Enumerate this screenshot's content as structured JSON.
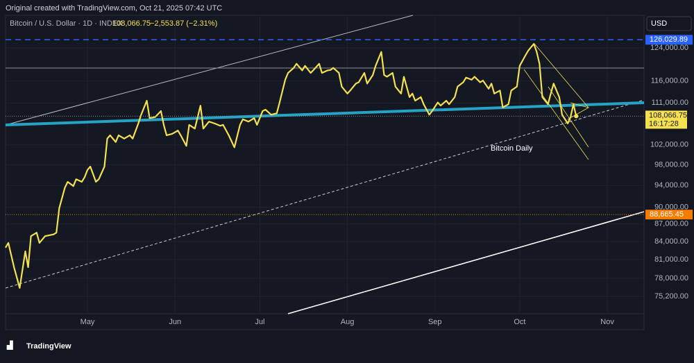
{
  "header": {
    "attribution": "Original created with TradingView.com, Oct 21, 2025 07:42 UTC",
    "brand": "TradingView"
  },
  "chart_data": {
    "type": "line",
    "legend": {
      "symbol": "Bitcoin / U.S. Dollar · 1D · INDEX",
      "price": "108,066.75",
      "change": "−2,553.87 (−2.31%)"
    },
    "currency": "USD",
    "annotation": "Bitcoin Daily",
    "log_scale": true,
    "grid": true,
    "xlim": [
      0,
      226
    ],
    "ylim": [
      72630,
      132400
    ],
    "xticks": [
      {
        "value": 29,
        "label": "May"
      },
      {
        "value": 60,
        "label": "Jun"
      },
      {
        "value": 90,
        "label": "Jul"
      },
      {
        "value": 121,
        "label": "Aug"
      },
      {
        "value": 152,
        "label": "Sep"
      },
      {
        "value": 182,
        "label": "Oct"
      },
      {
        "value": 213,
        "label": "Nov"
      }
    ],
    "yticks": [
      {
        "value": 75200,
        "label": "75,200.00"
      },
      {
        "value": 78000,
        "label": "78,000.00"
      },
      {
        "value": 81000,
        "label": "81,000.00"
      },
      {
        "value": 84000,
        "label": "84,000.00"
      },
      {
        "value": 87000,
        "label": "87,000.00"
      },
      {
        "value": 90000,
        "label": "90,000.00"
      },
      {
        "value": 94000,
        "label": "94,000.00"
      },
      {
        "value": 98000,
        "label": "98,000.00"
      },
      {
        "value": 102000,
        "label": "102,000.00"
      },
      {
        "value": 111000,
        "label": "111,000.00"
      },
      {
        "value": 116000,
        "label": "116,000.00"
      },
      {
        "value": 124000,
        "label": "124,000.00"
      }
    ],
    "series": [
      {
        "color": "#f5e050",
        "x": [
          0,
          1,
          3,
          5,
          7,
          8,
          9,
          11,
          12,
          14,
          17,
          18,
          19,
          21,
          22,
          24,
          25,
          27,
          28,
          29,
          30,
          32,
          33,
          35,
          36,
          37,
          39,
          40,
          42,
          44,
          45,
          47,
          48,
          50,
          51,
          53,
          55,
          56,
          57,
          59,
          61,
          62,
          64,
          65,
          67,
          69,
          70,
          72,
          74,
          76,
          77,
          79,
          81,
          83,
          84,
          86,
          88,
          89,
          91,
          92,
          94,
          96,
          97,
          99,
          100,
          102,
          103,
          105,
          106,
          108,
          109,
          111,
          112,
          114,
          115,
          116,
          118,
          119,
          121,
          122,
          124,
          125,
          127,
          128,
          130,
          131,
          133,
          134,
          135,
          137,
          138,
          140,
          141,
          143,
          144,
          145,
          147,
          148,
          150,
          151,
          153,
          154,
          156,
          157,
          159,
          160,
          162,
          163,
          165,
          166,
          168,
          169,
          171,
          172,
          173,
          175,
          176,
          178,
          179,
          181,
          182,
          184,
          185,
          187,
          188,
          189,
          190,
          192,
          193,
          194,
          196,
          197,
          199,
          200,
          201,
          202
        ],
        "values": [
          82950,
          83750,
          79750,
          76500,
          82350,
          79750,
          84900,
          85500,
          83750,
          84900,
          85200,
          85500,
          89800,
          93600,
          94700,
          93900,
          95200,
          94700,
          95600,
          97000,
          97650,
          94700,
          95200,
          97650,
          103300,
          104000,
          102600,
          104000,
          103300,
          104000,
          103300,
          106500,
          108400,
          111500,
          107650,
          107900,
          109200,
          106200,
          104000,
          104300,
          105000,
          104000,
          101800,
          106200,
          105400,
          110400,
          105400,
          106900,
          106500,
          106000,
          106200,
          104000,
          101500,
          106200,
          107400,
          106900,
          107650,
          106200,
          109200,
          109500,
          108400,
          108700,
          111100,
          116300,
          117900,
          119100,
          120100,
          118500,
          119600,
          117900,
          118600,
          120100,
          117900,
          118500,
          118600,
          119100,
          117900,
          114700,
          113100,
          113800,
          115400,
          115700,
          117900,
          115400,
          117400,
          119600,
          123000,
          117400,
          117000,
          117900,
          114700,
          113100,
          117000,
          112300,
          113100,
          111500,
          112300,
          110700,
          108400,
          109200,
          111100,
          110400,
          111500,
          110700,
          112300,
          114700,
          115700,
          116800,
          116300,
          117000,
          115700,
          116100,
          114200,
          115400,
          113100,
          113800,
          110000,
          110700,
          113800,
          114700,
          119600,
          122100,
          123300,
          125000,
          123000,
          120100,
          112300,
          110700,
          113100,
          115400,
          112300,
          108400,
          106500,
          107900,
          110700,
          108066.75
        ]
      }
    ],
    "price_levels": [
      {
        "value": 126029.89,
        "label": "126,029.89",
        "color": "#2962ff"
      },
      {
        "value": 88665.45,
        "label": "88,665.45",
        "color": "#f57c00"
      }
    ],
    "last_price": {
      "value": 108066.75,
      "label": "108,066.75",
      "countdown": "16:17:28",
      "color": "#f5e050"
    }
  }
}
